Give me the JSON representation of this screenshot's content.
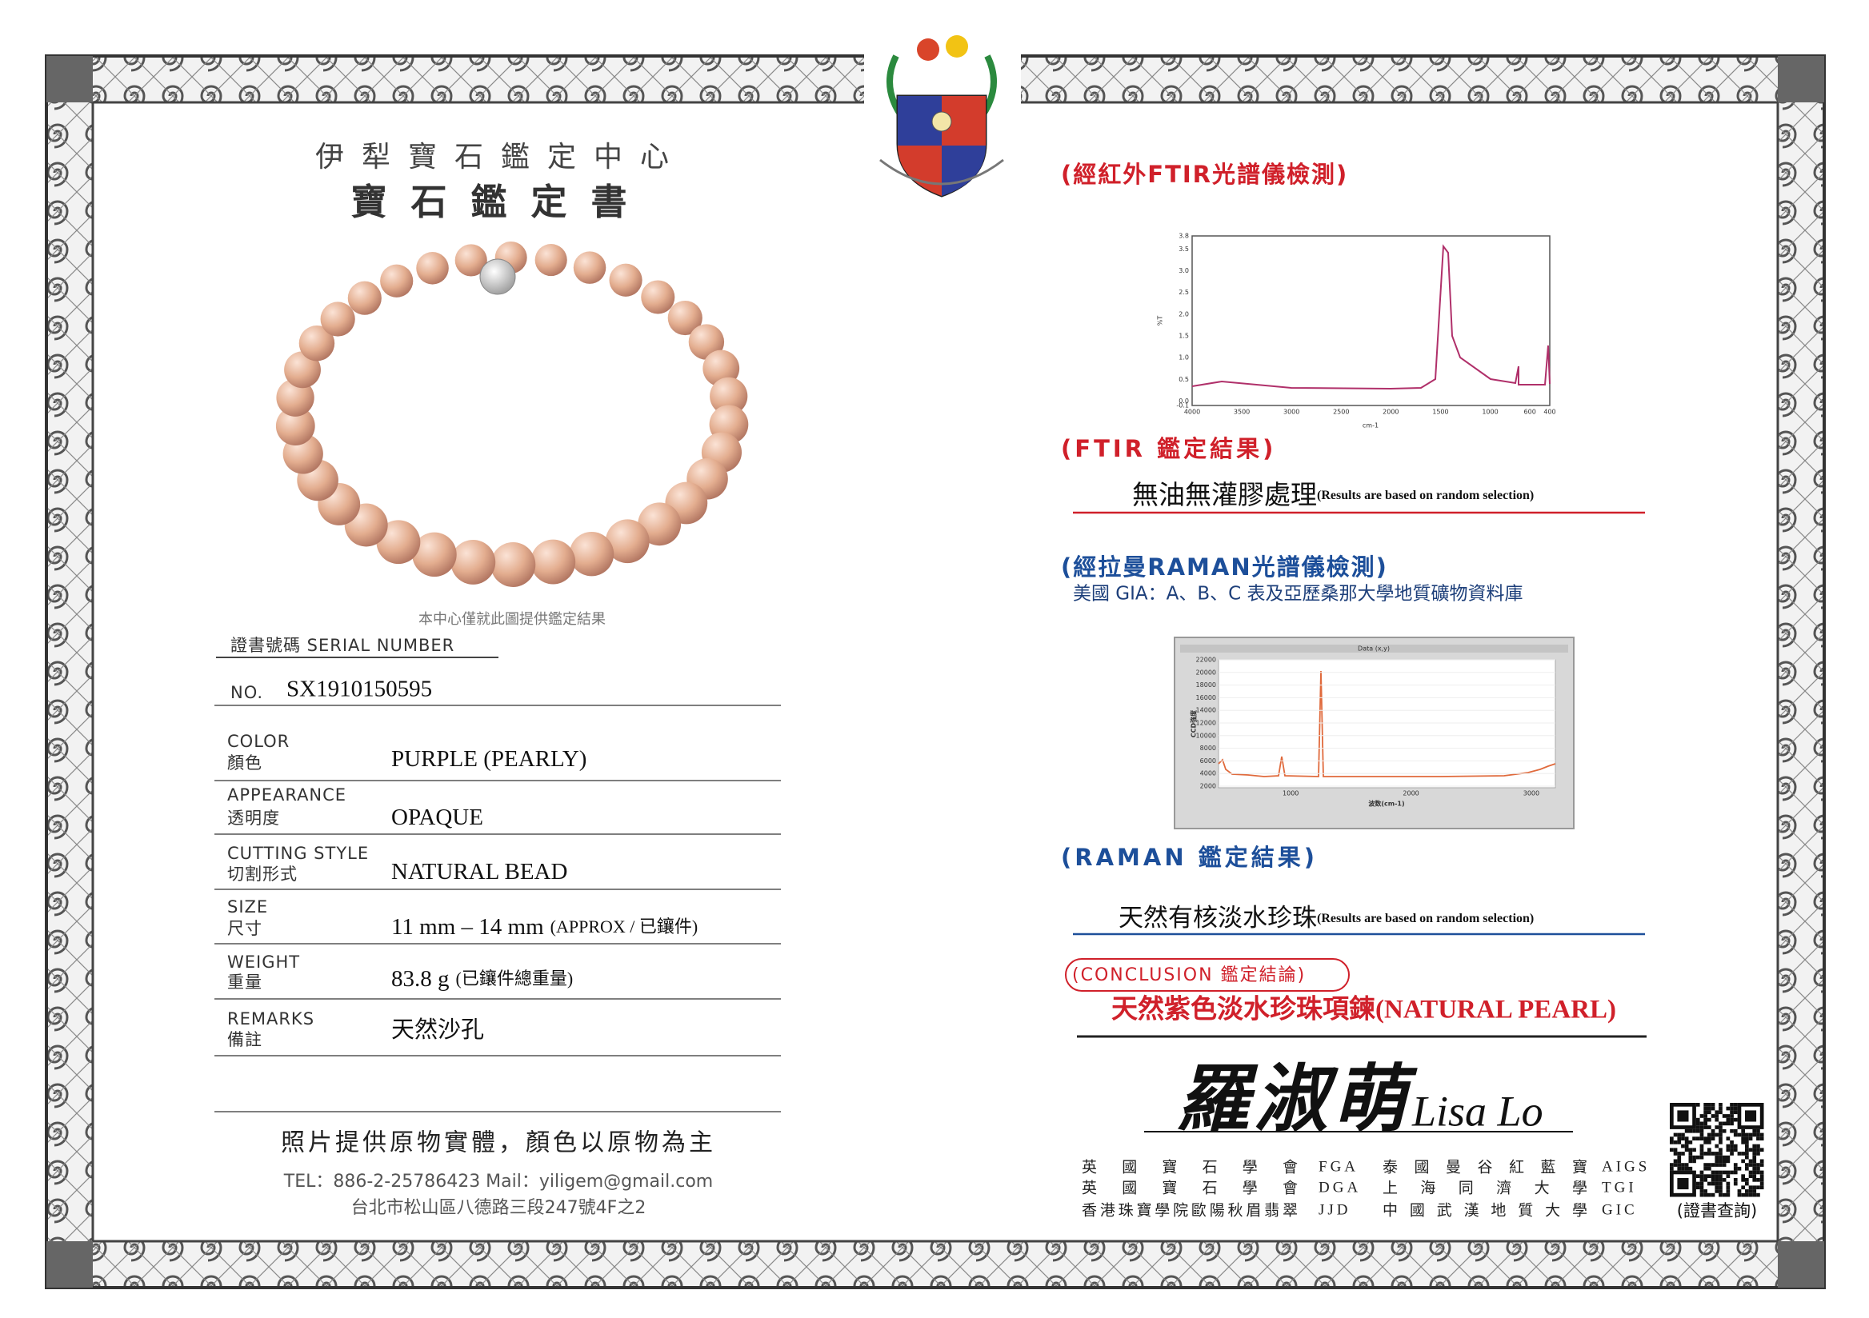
{
  "header": {
    "title": "伊犁寶石鑑定中心",
    "subtitle": "寶石鑑定書"
  },
  "photo_caption": "本中心僅就此圖提供鑑定結果",
  "serial": {
    "label": "證書號碼 SERIAL NUMBER",
    "no_label": "NO.",
    "number": "SX1910150595"
  },
  "fields": [
    {
      "label_en": "COLOR",
      "label_zh": "顏色",
      "value": "PURPLE (PEARLY)"
    },
    {
      "label_en": "APPEARANCE",
      "label_zh": "透明度",
      "value": "OPAQUE"
    },
    {
      "label_en": "CUTTING STYLE",
      "label_zh": "切割形式",
      "value": "NATURAL BEAD"
    },
    {
      "label_en": "SIZE",
      "label_zh": "尺寸",
      "value": "11 mm – 14 mm",
      "note": "(APPROX / 已鑲件)"
    },
    {
      "label_en": "WEIGHT",
      "label_zh": "重量",
      "value": "83.8 g",
      "note": "(已鑲件總重量)"
    },
    {
      "label_en": "REMARKS",
      "label_zh": "備註",
      "value": "天然沙孔"
    }
  ],
  "footer": {
    "note": "照片提供原物實體，顏色以原物為主",
    "contact": "TEL：886-2-25786423 Mail：yiligem@gmail.com",
    "address": "台北市松山區八德路三段247號4F之2"
  },
  "ftir": {
    "heading": "(經紅外FTIR光譜儀檢測)",
    "chart": {
      "y_label": "%T",
      "x_label": "cm-1",
      "yticks": [
        "3.8",
        "3.5",
        "3.0",
        "2.5",
        "2.0",
        "1.5",
        "1.0",
        "0.5",
        "0.0",
        "-0.1"
      ],
      "xticks": [
        "4000",
        "3500",
        "3000",
        "2500",
        "2000",
        "1500",
        "1000",
        "600",
        "400"
      ]
    },
    "result_heading": "(FTIR 鑑定結果)",
    "result": "無油無灌膠處理",
    "result_note": "(Results are based on random selection)"
  },
  "raman": {
    "heading": "(經拉曼RAMAN光譜儀檢測)",
    "database": "美國 GIA：A、B、C 表及亞歷桑那大學地質礦物資料庫",
    "chart": {
      "title": "Data (x,y)",
      "y_label": "CCD強度",
      "x_label": "波数(cm-1)",
      "yticks": [
        "22000",
        "20000",
        "18000",
        "16000",
        "14000",
        "12000",
        "10000",
        "8000",
        "6000",
        "4000",
        "2000"
      ],
      "xticks": [
        "1000",
        "2000",
        "3000"
      ]
    },
    "result_heading": "(RAMAN 鑑定結果)",
    "result": "天然有核淡水珍珠",
    "result_note": "(Results are based on random selection)"
  },
  "conclusion": {
    "heading": "(CONCLUSION 鑑定結論)",
    "result": "天然紫色淡水珍珠項鍊(NATURAL PEARL)"
  },
  "signature": {
    "name_zh": "羅淑萌",
    "name_en": "Lisa Lo"
  },
  "credentials": [
    [
      "英國寶石學會",
      "FGA",
      "泰國曼谷紅藍寶",
      "AIGS"
    ],
    [
      "英國寶石學會",
      "DGA",
      "上海同濟大學",
      "TGI"
    ],
    [
      "香港珠寶學院歐陽秋眉翡翠",
      "JJD",
      "中國武漢地質大學",
      "GIC"
    ]
  ],
  "qr_label": "(證書查詢)"
}
